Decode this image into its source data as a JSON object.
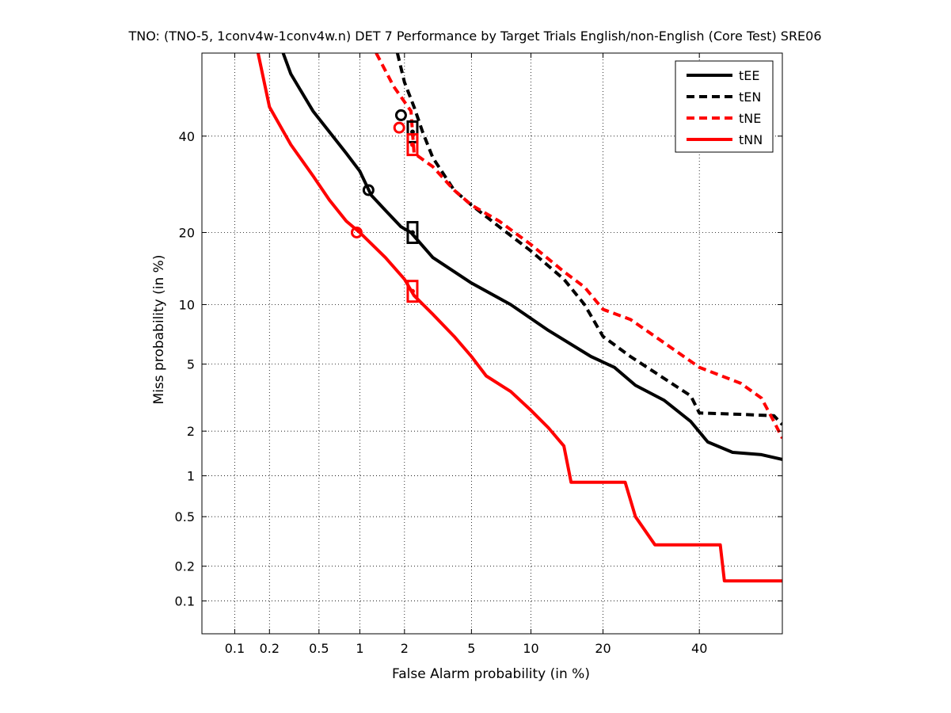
{
  "chart_data": {
    "type": "line",
    "title": "TNO: (TNO-5, 1conv4w-1conv4w.n) DET 7 Performance by Target Trials English/non-English (Core Test) SRE06",
    "xlabel": "False Alarm probability (in %)",
    "ylabel": "Miss probability (in %)",
    "x_scale": "normal-deviate",
    "y_scale": "normal-deviate",
    "xlim": [
      0.05,
      60
    ],
    "ylim": [
      0.05,
      60
    ],
    "x_ticks": [
      0.1,
      0.2,
      0.5,
      1,
      2,
      5,
      10,
      20,
      40
    ],
    "x_tick_labels": [
      "0.1",
      "0.2",
      "0.5",
      "1",
      "2",
      "5",
      "10",
      "20",
      "40"
    ],
    "y_ticks": [
      0.1,
      0.2,
      0.5,
      1,
      2,
      5,
      10,
      20,
      40
    ],
    "y_tick_labels": [
      "0.1",
      "0.2",
      "0.5",
      "1",
      "2",
      "5",
      "10",
      "20",
      "40"
    ],
    "grid": true,
    "legend_position": "top-right",
    "series": [
      {
        "name": "tEE",
        "color": "#000000",
        "dash": "solid",
        "points": [
          [
            0.26,
            60
          ],
          [
            0.3,
            55
          ],
          [
            0.45,
            46
          ],
          [
            0.8,
            36
          ],
          [
            1.0,
            32
          ],
          [
            1.2,
            27
          ],
          [
            1.5,
            24
          ],
          [
            1.9,
            21
          ],
          [
            2.2,
            20
          ],
          [
            3.0,
            16
          ],
          [
            5.0,
            12.5
          ],
          [
            8.0,
            10
          ],
          [
            12.0,
            7.5
          ],
          [
            18.0,
            5.5
          ],
          [
            22.0,
            4.8
          ],
          [
            26.0,
            3.8
          ],
          [
            32.0,
            3.1
          ],
          [
            38.0,
            2.3
          ],
          [
            42.0,
            1.7
          ],
          [
            48.0,
            1.45
          ],
          [
            55.0,
            1.4
          ],
          [
            60.0,
            1.3
          ]
        ],
        "min_dcf": [
          1.15,
          28.0
        ],
        "act_dcf": [
          2.25,
          20.0
        ]
      },
      {
        "name": "tEN",
        "color": "#000000",
        "dash": "dashed",
        "points": [
          [
            1.8,
            60
          ],
          [
            2.0,
            53
          ],
          [
            2.3,
            47
          ],
          [
            2.6,
            41
          ],
          [
            3.0,
            35
          ],
          [
            4.0,
            28
          ],
          [
            5.0,
            25
          ],
          [
            7.0,
            21
          ],
          [
            10.0,
            17
          ],
          [
            14.0,
            13
          ],
          [
            17.0,
            10
          ],
          [
            20.0,
            7
          ],
          [
            25.0,
            5.5
          ],
          [
            30.0,
            4.5
          ],
          [
            38.0,
            3.3
          ],
          [
            40.0,
            2.6
          ],
          [
            50.0,
            2.55
          ],
          [
            58.0,
            2.5
          ],
          [
            60.0,
            2.2
          ]
        ],
        "min_dcf": [
          1.9,
          45.0
        ],
        "act_dcf": [
          2.25,
          41.0
        ]
      },
      {
        "name": "tNE",
        "color": "#ff0000",
        "dash": "dashed",
        "points": [
          [
            1.3,
            60
          ],
          [
            1.7,
            52
          ],
          [
            2.2,
            46
          ],
          [
            2.3,
            36
          ],
          [
            3.0,
            33
          ],
          [
            4.0,
            28
          ],
          [
            5.0,
            25
          ],
          [
            7.0,
            22
          ],
          [
            10.0,
            18
          ],
          [
            14.0,
            14
          ],
          [
            17.0,
            12
          ],
          [
            20.0,
            9.5
          ],
          [
            25.0,
            8.5
          ],
          [
            30.0,
            7
          ],
          [
            40.0,
            4.8
          ],
          [
            50.0,
            3.9
          ],
          [
            55.0,
            3.2
          ],
          [
            58.0,
            2.3
          ],
          [
            60.0,
            1.8
          ]
        ],
        "min_dcf": [
          1.85,
          42.0
        ],
        "act_dcf": [
          2.25,
          38.0
        ]
      },
      {
        "name": "tNN",
        "color": "#ff0000",
        "dash": "solid",
        "points": [
          [
            0.16,
            60
          ],
          [
            0.2,
            47
          ],
          [
            0.3,
            38
          ],
          [
            0.45,
            31
          ],
          [
            0.6,
            26
          ],
          [
            0.8,
            22
          ],
          [
            1.0,
            20
          ],
          [
            1.5,
            16
          ],
          [
            2.0,
            13
          ],
          [
            2.3,
            11
          ],
          [
            3.0,
            9
          ],
          [
            4.0,
            7
          ],
          [
            5.0,
            5.5
          ],
          [
            6.0,
            4.3
          ],
          [
            8.0,
            3.5
          ],
          [
            10.0,
            2.7
          ],
          [
            12.0,
            2.1
          ],
          [
            14.0,
            1.6
          ],
          [
            15.0,
            0.9
          ],
          [
            24.0,
            0.9
          ],
          [
            26.0,
            0.5
          ],
          [
            30.0,
            0.3
          ],
          [
            45.0,
            0.3
          ],
          [
            46.0,
            0.15
          ],
          [
            60.0,
            0.15
          ]
        ],
        "min_dcf": [
          0.95,
          20.0
        ],
        "act_dcf": [
          2.25,
          11.5
        ]
      }
    ]
  }
}
